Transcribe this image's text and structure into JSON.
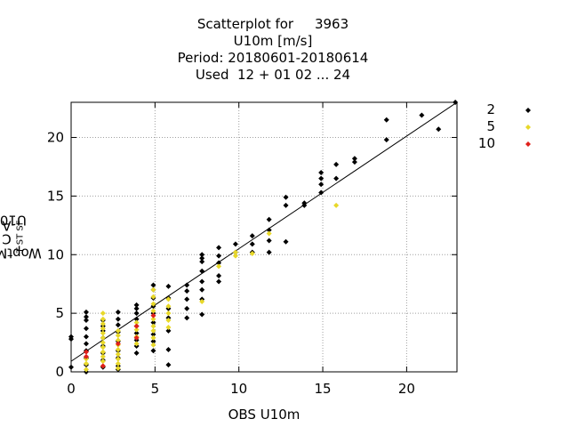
{
  "title": {
    "line1_prefix": "Scatterplot for",
    "line1_station": "3963",
    "line2": "U10m [m/s]",
    "line3": "Period: 20180601-20180614",
    "line4": "Used  12 + 01 02 ... 24"
  },
  "chart_data": {
    "type": "scatter",
    "xlabel": "OBS U10m",
    "ylabel": {
      "text": "WoptMoist",
      "sub1": "T S",
      "mid": "C",
      "sub2": "T S",
      "mid2": "A",
      "sub3": "F",
      "tail": " U10m"
    },
    "xlim": [
      0,
      23
    ],
    "ylim": [
      0,
      23
    ],
    "xticks": [
      0,
      5,
      10,
      15,
      20
    ],
    "yticks": [
      0,
      5,
      10,
      15,
      20
    ],
    "grid": true,
    "legend_position": "right-outside",
    "regression_line": [
      [
        0,
        0.9
      ],
      [
        23,
        23.0
      ]
    ],
    "series": [
      {
        "name": "2",
        "color": "#000000",
        "points": [
          [
            0,
            0.4
          ],
          [
            0,
            2.8
          ],
          [
            0,
            3.0
          ],
          [
            0.9,
            0.0
          ],
          [
            0.9,
            0.6
          ],
          [
            0.9,
            1.2
          ],
          [
            0.9,
            1.8
          ],
          [
            0.9,
            2.4
          ],
          [
            0.9,
            3.0
          ],
          [
            0.9,
            3.7
          ],
          [
            0.9,
            4.4
          ],
          [
            0.9,
            4.7
          ],
          [
            0.9,
            5.1
          ],
          [
            1.9,
            0.4
          ],
          [
            1.9,
            1.0
          ],
          [
            1.9,
            1.6
          ],
          [
            1.9,
            2.2
          ],
          [
            1.9,
            2.9
          ],
          [
            1.9,
            3.5
          ],
          [
            1.9,
            3.9
          ],
          [
            1.9,
            4.4
          ],
          [
            2.8,
            0.2
          ],
          [
            2.8,
            0.5
          ],
          [
            2.8,
            1.2
          ],
          [
            2.8,
            1.8
          ],
          [
            2.8,
            2.6
          ],
          [
            2.8,
            3.4
          ],
          [
            2.8,
            4.0
          ],
          [
            2.8,
            4.5
          ],
          [
            2.8,
            5.1
          ],
          [
            3.9,
            1.6
          ],
          [
            3.9,
            2.2
          ],
          [
            3.9,
            2.7
          ],
          [
            3.9,
            3.3
          ],
          [
            3.9,
            3.9
          ],
          [
            3.9,
            4.5
          ],
          [
            3.9,
            5.0
          ],
          [
            3.9,
            5.4
          ],
          [
            3.9,
            5.7
          ],
          [
            4.9,
            1.8
          ],
          [
            4.9,
            2.6
          ],
          [
            4.9,
            3.2
          ],
          [
            4.9,
            4.2
          ],
          [
            4.9,
            5.0
          ],
          [
            4.9,
            5.6
          ],
          [
            4.9,
            6.3
          ],
          [
            4.9,
            7.0
          ],
          [
            4.9,
            7.4
          ],
          [
            5.8,
            0.6
          ],
          [
            5.8,
            1.9
          ],
          [
            5.8,
            3.5
          ],
          [
            5.8,
            4.6
          ],
          [
            5.8,
            5.4
          ],
          [
            5.8,
            6.3
          ],
          [
            5.8,
            7.3
          ],
          [
            6.9,
            4.6
          ],
          [
            6.9,
            5.4
          ],
          [
            6.9,
            6.2
          ],
          [
            6.9,
            6.9
          ],
          [
            6.9,
            7.4
          ],
          [
            7.8,
            4.9
          ],
          [
            7.8,
            6.2
          ],
          [
            7.8,
            7.0
          ],
          [
            7.8,
            7.7
          ],
          [
            7.8,
            8.6
          ],
          [
            7.8,
            9.4
          ],
          [
            7.8,
            9.7
          ],
          [
            7.8,
            10.0
          ],
          [
            8.8,
            7.7
          ],
          [
            8.8,
            8.2
          ],
          [
            8.8,
            9.3
          ],
          [
            8.8,
            9.9
          ],
          [
            8.8,
            10.6
          ],
          [
            9.8,
            10.2
          ],
          [
            9.8,
            10.9
          ],
          [
            10.8,
            10.2
          ],
          [
            10.8,
            10.9
          ],
          [
            10.8,
            11.6
          ],
          [
            11.8,
            10.2
          ],
          [
            11.8,
            11.2
          ],
          [
            11.8,
            12.1
          ],
          [
            11.8,
            13.0
          ],
          [
            12.8,
            11.1
          ],
          [
            12.8,
            14.2
          ],
          [
            12.8,
            14.9
          ],
          [
            13.9,
            14.2
          ],
          [
            13.9,
            14.4
          ],
          [
            14.9,
            15.3
          ],
          [
            14.9,
            16.0
          ],
          [
            14.9,
            16.5
          ],
          [
            14.9,
            17.0
          ],
          [
            15.8,
            16.5
          ],
          [
            15.8,
            17.7
          ],
          [
            16.9,
            17.9
          ],
          [
            16.9,
            18.2
          ],
          [
            18.8,
            19.8
          ],
          [
            18.8,
            21.5
          ],
          [
            20.9,
            21.9
          ],
          [
            21.9,
            20.7
          ],
          [
            22.9,
            23.0
          ]
        ]
      },
      {
        "name": "5",
        "color": "#e8d829",
        "points": [
          [
            0.9,
            0.2
          ],
          [
            0.9,
            0.7
          ],
          [
            0.9,
            1.1
          ],
          [
            1.9,
            0.5
          ],
          [
            1.9,
            0.9
          ],
          [
            1.9,
            1.3
          ],
          [
            1.9,
            1.7
          ],
          [
            1.9,
            2.1
          ],
          [
            1.9,
            2.5
          ],
          [
            1.9,
            2.9
          ],
          [
            1.9,
            3.3
          ],
          [
            1.9,
            3.7
          ],
          [
            1.9,
            4.1
          ],
          [
            1.9,
            4.5
          ],
          [
            1.9,
            5.0
          ],
          [
            2.8,
            0.3
          ],
          [
            2.8,
            0.7
          ],
          [
            2.8,
            1.1
          ],
          [
            2.8,
            1.5
          ],
          [
            2.8,
            1.9
          ],
          [
            2.8,
            2.3
          ],
          [
            2.8,
            2.7
          ],
          [
            2.8,
            3.1
          ],
          [
            2.8,
            3.5
          ],
          [
            3.9,
            2.4
          ],
          [
            3.9,
            3.0
          ],
          [
            3.9,
            3.6
          ],
          [
            3.9,
            4.2
          ],
          [
            4.9,
            2.3
          ],
          [
            4.9,
            2.9
          ],
          [
            4.9,
            3.5
          ],
          [
            4.9,
            3.9
          ],
          [
            4.9,
            4.5
          ],
          [
            4.9,
            5.2
          ],
          [
            4.9,
            5.8
          ],
          [
            4.9,
            6.4
          ],
          [
            4.9,
            7.0
          ],
          [
            5.8,
            3.8
          ],
          [
            5.8,
            4.4
          ],
          [
            5.8,
            5.0
          ],
          [
            5.8,
            5.6
          ],
          [
            5.8,
            6.2
          ],
          [
            7.8,
            6.0
          ],
          [
            8.8,
            9.0
          ],
          [
            9.8,
            9.9
          ],
          [
            9.8,
            10.2
          ],
          [
            10.8,
            10.1
          ],
          [
            11.8,
            11.8
          ],
          [
            15.8,
            14.2
          ]
        ]
      },
      {
        "name": "10",
        "color": "#e0201b",
        "points": [
          [
            0.9,
            1.3
          ],
          [
            0.9,
            1.7
          ],
          [
            1.9,
            0.5
          ],
          [
            2.8,
            2.4
          ],
          [
            3.9,
            2.9
          ],
          [
            3.9,
            3.9
          ],
          [
            4.9,
            4.8
          ]
        ]
      }
    ]
  }
}
